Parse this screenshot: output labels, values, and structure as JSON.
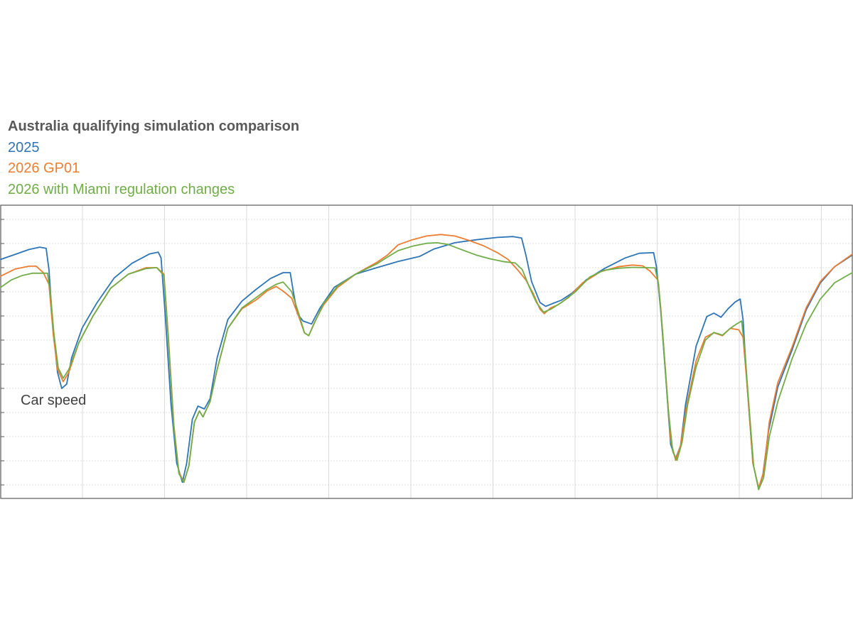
{
  "chart_data": {
    "type": "line",
    "title": "Australia qualifying simulation comparison",
    "annotation": "Car speed",
    "xlabel": "",
    "ylabel": "",
    "xlim": [
      0,
      1200
    ],
    "ylim": [
      0,
      1
    ],
    "grid": true,
    "legend_placement": "top-left",
    "series": [
      {
        "name": "2025",
        "color": "#2E75B6",
        "points": [
          [
            0,
            0.815
          ],
          [
            20,
            0.832
          ],
          [
            40,
            0.849
          ],
          [
            55,
            0.857
          ],
          [
            64,
            0.853
          ],
          [
            68,
            0.78
          ],
          [
            73,
            0.6
          ],
          [
            80,
            0.43
          ],
          [
            86,
            0.375
          ],
          [
            93,
            0.39
          ],
          [
            100,
            0.48
          ],
          [
            115,
            0.582
          ],
          [
            135,
            0.665
          ],
          [
            160,
            0.752
          ],
          [
            185,
            0.802
          ],
          [
            210,
            0.834
          ],
          [
            222,
            0.84
          ],
          [
            226,
            0.82
          ],
          [
            232,
            0.62
          ],
          [
            240,
            0.32
          ],
          [
            248,
            0.12
          ],
          [
            256,
            0.055
          ],
          [
            262,
            0.12
          ],
          [
            270,
            0.27
          ],
          [
            278,
            0.315
          ],
          [
            287,
            0.305
          ],
          [
            295,
            0.34
          ],
          [
            305,
            0.48
          ],
          [
            320,
            0.61
          ],
          [
            340,
            0.673
          ],
          [
            360,
            0.713
          ],
          [
            380,
            0.75
          ],
          [
            398,
            0.77
          ],
          [
            408,
            0.77
          ],
          [
            412,
            0.71
          ],
          [
            418,
            0.63
          ],
          [
            426,
            0.605
          ],
          [
            438,
            0.595
          ],
          [
            450,
            0.65
          ],
          [
            470,
            0.72
          ],
          [
            500,
            0.765
          ],
          [
            530,
            0.787
          ],
          [
            560,
            0.808
          ],
          [
            590,
            0.825
          ],
          [
            610,
            0.85
          ],
          [
            640,
            0.872
          ],
          [
            670,
            0.882
          ],
          [
            700,
            0.89
          ],
          [
            722,
            0.893
          ],
          [
            734,
            0.888
          ],
          [
            740,
            0.83
          ],
          [
            748,
            0.74
          ],
          [
            760,
            0.668
          ],
          [
            768,
            0.655
          ],
          [
            778,
            0.665
          ],
          [
            790,
            0.676
          ],
          [
            805,
            0.7
          ],
          [
            825,
            0.745
          ],
          [
            850,
            0.783
          ],
          [
            880,
            0.82
          ],
          [
            900,
            0.836
          ],
          [
            920,
            0.838
          ],
          [
            924,
            0.79
          ],
          [
            930,
            0.64
          ],
          [
            937,
            0.42
          ],
          [
            944,
            0.185
          ],
          [
            951,
            0.135
          ],
          [
            958,
            0.18
          ],
          [
            965,
            0.32
          ],
          [
            980,
            0.52
          ],
          [
            995,
            0.62
          ],
          [
            1005,
            0.632
          ],
          [
            1015,
            0.618
          ],
          [
            1025,
            0.647
          ],
          [
            1035,
            0.67
          ],
          [
            1042,
            0.68
          ],
          [
            1046,
            0.61
          ],
          [
            1052,
            0.38
          ],
          [
            1060,
            0.12
          ],
          [
            1068,
            0.035
          ],
          [
            1074,
            0.08
          ],
          [
            1082,
            0.23
          ],
          [
            1095,
            0.38
          ],
          [
            1115,
            0.505
          ],
          [
            1135,
            0.643
          ],
          [
            1155,
            0.735
          ],
          [
            1175,
            0.79
          ],
          [
            1200,
            0.83
          ]
        ]
      },
      {
        "name": "2026 GP01",
        "color": "#ED7D31",
        "points": [
          [
            0,
            0.758
          ],
          [
            20,
            0.782
          ],
          [
            40,
            0.792
          ],
          [
            50,
            0.792
          ],
          [
            60,
            0.77
          ],
          [
            68,
            0.73
          ],
          [
            74,
            0.56
          ],
          [
            80,
            0.44
          ],
          [
            88,
            0.398
          ],
          [
            96,
            0.43
          ],
          [
            110,
            0.53
          ],
          [
            130,
            0.622
          ],
          [
            155,
            0.717
          ],
          [
            180,
            0.765
          ],
          [
            205,
            0.787
          ],
          [
            220,
            0.787
          ],
          [
            230,
            0.765
          ],
          [
            236,
            0.56
          ],
          [
            244,
            0.25
          ],
          [
            251,
            0.09
          ],
          [
            258,
            0.055
          ],
          [
            265,
            0.11
          ],
          [
            273,
            0.26
          ],
          [
            280,
            0.298
          ],
          [
            285,
            0.278
          ],
          [
            295,
            0.33
          ],
          [
            305,
            0.44
          ],
          [
            320,
            0.58
          ],
          [
            340,
            0.647
          ],
          [
            360,
            0.677
          ],
          [
            375,
            0.707
          ],
          [
            388,
            0.723
          ],
          [
            398,
            0.707
          ],
          [
            410,
            0.683
          ],
          [
            420,
            0.62
          ],
          [
            428,
            0.565
          ],
          [
            434,
            0.555
          ],
          [
            442,
            0.6
          ],
          [
            455,
            0.66
          ],
          [
            475,
            0.72
          ],
          [
            500,
            0.765
          ],
          [
            530,
            0.805
          ],
          [
            545,
            0.83
          ],
          [
            560,
            0.865
          ],
          [
            580,
            0.882
          ],
          [
            600,
            0.895
          ],
          [
            620,
            0.9
          ],
          [
            640,
            0.895
          ],
          [
            660,
            0.88
          ],
          [
            680,
            0.862
          ],
          [
            700,
            0.838
          ],
          [
            715,
            0.815
          ],
          [
            730,
            0.775
          ],
          [
            740,
            0.745
          ],
          [
            750,
            0.7
          ],
          [
            760,
            0.645
          ],
          [
            766,
            0.63
          ],
          [
            775,
            0.65
          ],
          [
            785,
            0.66
          ],
          [
            800,
            0.685
          ],
          [
            820,
            0.735
          ],
          [
            845,
            0.773
          ],
          [
            870,
            0.79
          ],
          [
            890,
            0.796
          ],
          [
            905,
            0.793
          ],
          [
            915,
            0.775
          ],
          [
            926,
            0.745
          ],
          [
            930,
            0.65
          ],
          [
            937,
            0.43
          ],
          [
            944,
            0.2
          ],
          [
            951,
            0.13
          ],
          [
            958,
            0.18
          ],
          [
            966,
            0.31
          ],
          [
            980,
            0.47
          ],
          [
            993,
            0.55
          ],
          [
            1005,
            0.565
          ],
          [
            1017,
            0.555
          ],
          [
            1028,
            0.58
          ],
          [
            1040,
            0.575
          ],
          [
            1046,
            0.55
          ],
          [
            1052,
            0.38
          ],
          [
            1060,
            0.12
          ],
          [
            1068,
            0.035
          ],
          [
            1075,
            0.09
          ],
          [
            1083,
            0.26
          ],
          [
            1095,
            0.395
          ],
          [
            1115,
            0.515
          ],
          [
            1135,
            0.65
          ],
          [
            1155,
            0.74
          ],
          [
            1175,
            0.79
          ],
          [
            1200,
            0.833
          ]
        ]
      },
      {
        "name": "2026 with Miami regulation changes",
        "color": "#70AD47",
        "points": [
          [
            0,
            0.72
          ],
          [
            15,
            0.745
          ],
          [
            30,
            0.76
          ],
          [
            45,
            0.768
          ],
          [
            66,
            0.768
          ],
          [
            70,
            0.7
          ],
          [
            75,
            0.56
          ],
          [
            81,
            0.445
          ],
          [
            88,
            0.41
          ],
          [
            96,
            0.44
          ],
          [
            110,
            0.53
          ],
          [
            130,
            0.622
          ],
          [
            155,
            0.717
          ],
          [
            180,
            0.765
          ],
          [
            205,
            0.784
          ],
          [
            220,
            0.787
          ],
          [
            230,
            0.76
          ],
          [
            236,
            0.55
          ],
          [
            244,
            0.24
          ],
          [
            251,
            0.085
          ],
          [
            258,
            0.055
          ],
          [
            265,
            0.11
          ],
          [
            273,
            0.26
          ],
          [
            280,
            0.298
          ],
          [
            285,
            0.278
          ],
          [
            295,
            0.33
          ],
          [
            305,
            0.44
          ],
          [
            320,
            0.58
          ],
          [
            340,
            0.65
          ],
          [
            360,
            0.685
          ],
          [
            375,
            0.712
          ],
          [
            388,
            0.73
          ],
          [
            398,
            0.738
          ],
          [
            410,
            0.705
          ],
          [
            420,
            0.63
          ],
          [
            428,
            0.565
          ],
          [
            434,
            0.555
          ],
          [
            442,
            0.598
          ],
          [
            455,
            0.665
          ],
          [
            475,
            0.725
          ],
          [
            500,
            0.765
          ],
          [
            530,
            0.8
          ],
          [
            545,
            0.823
          ],
          [
            560,
            0.845
          ],
          [
            580,
            0.86
          ],
          [
            600,
            0.87
          ],
          [
            615,
            0.872
          ],
          [
            630,
            0.866
          ],
          [
            650,
            0.848
          ],
          [
            670,
            0.83
          ],
          [
            690,
            0.817
          ],
          [
            710,
            0.807
          ],
          [
            725,
            0.803
          ],
          [
            735,
            0.78
          ],
          [
            745,
            0.72
          ],
          [
            755,
            0.668
          ],
          [
            765,
            0.635
          ],
          [
            775,
            0.645
          ],
          [
            790,
            0.668
          ],
          [
            810,
            0.705
          ],
          [
            830,
            0.755
          ],
          [
            850,
            0.778
          ],
          [
            870,
            0.785
          ],
          [
            890,
            0.788
          ],
          [
            910,
            0.787
          ],
          [
            922,
            0.786
          ],
          [
            927,
            0.73
          ],
          [
            933,
            0.56
          ],
          [
            940,
            0.32
          ],
          [
            947,
            0.16
          ],
          [
            953,
            0.13
          ],
          [
            960,
            0.19
          ],
          [
            968,
            0.32
          ],
          [
            980,
            0.45
          ],
          [
            993,
            0.54
          ],
          [
            1005,
            0.566
          ],
          [
            1017,
            0.557
          ],
          [
            1028,
            0.58
          ],
          [
            1037,
            0.595
          ],
          [
            1044,
            0.605
          ],
          [
            1048,
            0.52
          ],
          [
            1054,
            0.33
          ],
          [
            1061,
            0.11
          ],
          [
            1068,
            0.03
          ],
          [
            1075,
            0.07
          ],
          [
            1083,
            0.21
          ],
          [
            1095,
            0.33
          ],
          [
            1115,
            0.475
          ],
          [
            1135,
            0.595
          ],
          [
            1155,
            0.68
          ],
          [
            1175,
            0.735
          ],
          [
            1200,
            0.77
          ]
        ]
      }
    ]
  }
}
